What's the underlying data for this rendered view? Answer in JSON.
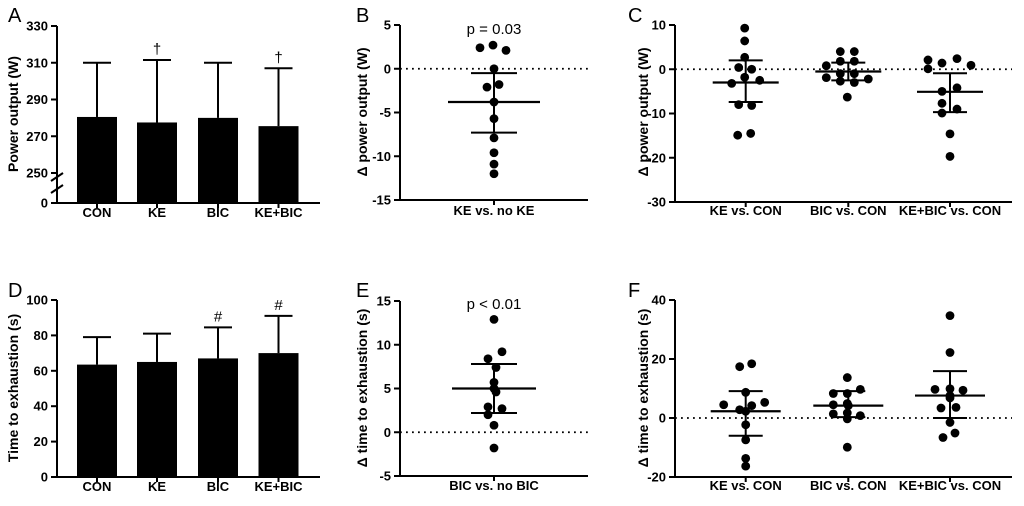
{
  "colors": {
    "ink": "#000000",
    "background": "#ffffff"
  },
  "chart_data": [
    {
      "panel_label": "A",
      "type": "bar",
      "ylabel": "Power output (W)",
      "categories": [
        "CON",
        "KE",
        "BIC",
        "KE+BIC"
      ],
      "values": [
        280.5,
        277.5,
        280,
        275.5
      ],
      "error_top": [
        310,
        311.5,
        310,
        307
      ],
      "sig_labels": [
        "",
        "†",
        "",
        "†"
      ],
      "yticks": [
        330,
        310,
        290,
        270,
        250
      ],
      "extra_ytick": 0,
      "ylim": [
        250,
        330
      ],
      "axis_break": true
    },
    {
      "panel_label": "B",
      "type": "scatter",
      "ylabel": "Δ power output (W)",
      "p_label": "p = 0.03",
      "yticks": [
        5,
        0,
        -5,
        -10,
        -15
      ],
      "ylim": [
        -15,
        5
      ],
      "zero_line": true,
      "groups": [
        {
          "label": "KE vs. no KE",
          "mean": -3.8,
          "sd_upper": -0.5,
          "sd_lower": -7.3,
          "points": [
            [
              -14,
              2.4
            ],
            [
              -1,
              2.7
            ],
            [
              12,
              2.1
            ],
            [
              0,
              0
            ],
            [
              -7,
              -2.1
            ],
            [
              5,
              -1.8
            ],
            [
              0,
              -3.8
            ],
            [
              0,
              -5.7
            ],
            [
              0,
              -7.9
            ],
            [
              0,
              -9.6
            ],
            [
              0,
              -10.9
            ],
            [
              0,
              -12.0
            ]
          ]
        }
      ]
    },
    {
      "panel_label": "C",
      "type": "scatter",
      "ylabel": "Δ power output (W)",
      "p_label": "",
      "yticks": [
        10,
        0,
        -10,
        -20,
        -30
      ],
      "ylim": [
        -30,
        10
      ],
      "zero_line": true,
      "groups": [
        {
          "label": "KE vs. CON",
          "mean": -3.0,
          "sd_upper": 2.0,
          "sd_lower": -7.4,
          "points": [
            [
              -1,
              9.3
            ],
            [
              -1,
              6.4
            ],
            [
              -1,
              2.7
            ],
            [
              -7,
              0.4
            ],
            [
              6,
              0
            ],
            [
              -1,
              -1.8
            ],
            [
              -14,
              -3.2
            ],
            [
              14,
              -2.5
            ],
            [
              -7,
              -8.0
            ],
            [
              6,
              -8.2
            ],
            [
              -8,
              -14.9
            ],
            [
              5,
              -14.5
            ]
          ]
        },
        {
          "label": "BIC vs. CON",
          "mean": -0.5,
          "sd_upper": 1.5,
          "sd_lower": -2.5,
          "points": [
            [
              -8,
              4.0
            ],
            [
              6,
              4.0
            ],
            [
              -8,
              1.8
            ],
            [
              6,
              1.8
            ],
            [
              -22,
              0.8
            ],
            [
              -8,
              -1.0
            ],
            [
              6,
              -1.0
            ],
            [
              -22,
              -1.9
            ],
            [
              -8,
              -2.7
            ],
            [
              6,
              -3.0
            ],
            [
              20,
              -2.2
            ],
            [
              -1,
              -6.3
            ]
          ]
        },
        {
          "label": "KE+BIC vs. CON",
          "mean": -5.1,
          "sd_upper": -0.9,
          "sd_lower": -9.7,
          "points": [
            [
              -22,
              2.1
            ],
            [
              7,
              2.4
            ],
            [
              -8,
              1.4
            ],
            [
              21,
              0.9
            ],
            [
              -22,
              0.1
            ],
            [
              7,
              -4.2
            ],
            [
              -8,
              -5.0
            ],
            [
              -8,
              -7.7
            ],
            [
              7,
              -9.0
            ],
            [
              -8,
              -9.9
            ],
            [
              0,
              -14.6
            ],
            [
              0,
              -19.7
            ]
          ]
        }
      ]
    },
    {
      "panel_label": "D",
      "type": "bar",
      "ylabel": "Time to exhaustion (s)",
      "categories": [
        "CON",
        "KE",
        "BIC",
        "KE+BIC"
      ],
      "values": [
        63.5,
        65,
        67,
        70
      ],
      "error_top": [
        79,
        81,
        84.5,
        91
      ],
      "sig_labels": [
        "",
        "",
        "#",
        "#"
      ],
      "yticks": [
        100,
        80,
        60,
        40,
        20,
        0
      ],
      "extra_ytick": null,
      "ylim": [
        0,
        100
      ],
      "axis_break": false
    },
    {
      "panel_label": "E",
      "type": "scatter",
      "ylabel": "Δ time to exhaustion (s)",
      "p_label": "p < 0.01",
      "yticks": [
        15,
        10,
        5,
        0,
        -5
      ],
      "ylim": [
        -5,
        15
      ],
      "zero_line": true,
      "groups": [
        {
          "label": "BIC vs. no BIC",
          "mean": 5.0,
          "sd_upper": 7.8,
          "sd_lower": 2.2,
          "points": [
            [
              0,
              12.9
            ],
            [
              8,
              9.2
            ],
            [
              -6,
              8.4
            ],
            [
              2,
              7.4
            ],
            [
              0,
              5.7
            ],
            [
              0,
              5.0
            ],
            [
              2,
              4.6
            ],
            [
              -6,
              2.9
            ],
            [
              8,
              2.7
            ],
            [
              -6,
              2.0
            ],
            [
              0,
              0.8
            ],
            [
              0,
              -1.8
            ]
          ]
        }
      ]
    },
    {
      "panel_label": "F",
      "type": "scatter",
      "ylabel": "Δ time to exhaustion (s)",
      "p_label": "",
      "yticks": [
        40,
        20,
        0,
        -20
      ],
      "ylim": [
        -20,
        40
      ],
      "zero_line": true,
      "groups": [
        {
          "label": "KE vs. CON",
          "mean": 2.3,
          "sd_upper": 9.1,
          "sd_lower": -6.0,
          "points": [
            [
              -6,
              17.4
            ],
            [
              6,
              18.4
            ],
            [
              0,
              8.7
            ],
            [
              19,
              5.3
            ],
            [
              -22,
              4.5
            ],
            [
              6,
              4.2
            ],
            [
              -6,
              2.8
            ],
            [
              0,
              2.3
            ],
            [
              0,
              -2.3
            ],
            [
              0,
              -7.4
            ],
            [
              0,
              -13.7
            ],
            [
              0,
              -16.3
            ]
          ]
        },
        {
          "label": "BIC vs. CON",
          "mean": 4.2,
          "sd_upper": 9.1,
          "sd_lower": 0.3,
          "points": [
            [
              -1,
              13.7
            ],
            [
              12,
              9.7
            ],
            [
              -15,
              8.3
            ],
            [
              -1,
              8.3
            ],
            [
              -1,
              4.9
            ],
            [
              -15,
              4.5
            ],
            [
              0,
              4.2
            ],
            [
              -1,
              1.7
            ],
            [
              -15,
              1.4
            ],
            [
              12,
              0.8
            ],
            [
              -1,
              -0.3
            ],
            [
              -1,
              -9.9
            ]
          ]
        },
        {
          "label": "KE+BIC vs. CON",
          "mean": 7.6,
          "sd_upper": 15.9,
          "sd_lower": 0.0,
          "points": [
            [
              0,
              34.7
            ],
            [
              0,
              22.2
            ],
            [
              13,
              9.4
            ],
            [
              -15,
              9.7
            ],
            [
              0,
              9.9
            ],
            [
              0,
              7.6
            ],
            [
              0,
              6.8
            ],
            [
              6,
              3.6
            ],
            [
              -9,
              3.4
            ],
            [
              0,
              -1.5
            ],
            [
              5,
              -5.1
            ],
            [
              -7,
              -6.6
            ]
          ]
        }
      ]
    }
  ]
}
